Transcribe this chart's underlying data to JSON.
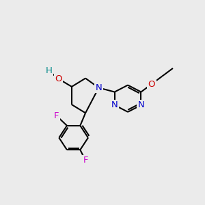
{
  "background_color": "#ebebeb",
  "atoms": {
    "N_pyr": {
      "label": "N",
      "color": "#0000cc"
    },
    "O_OH": {
      "label": "O",
      "color": "#cc0000"
    },
    "H_OH": {
      "label": "H",
      "color": "#008888"
    },
    "O_eth": {
      "label": "O",
      "color": "#cc0000"
    },
    "N_a": {
      "label": "N",
      "color": "#0000cc"
    },
    "N_b": {
      "label": "N",
      "color": "#0000cc"
    },
    "F1": {
      "label": "F",
      "color": "#cc00cc"
    },
    "F2": {
      "label": "F",
      "color": "#cc00cc"
    }
  }
}
